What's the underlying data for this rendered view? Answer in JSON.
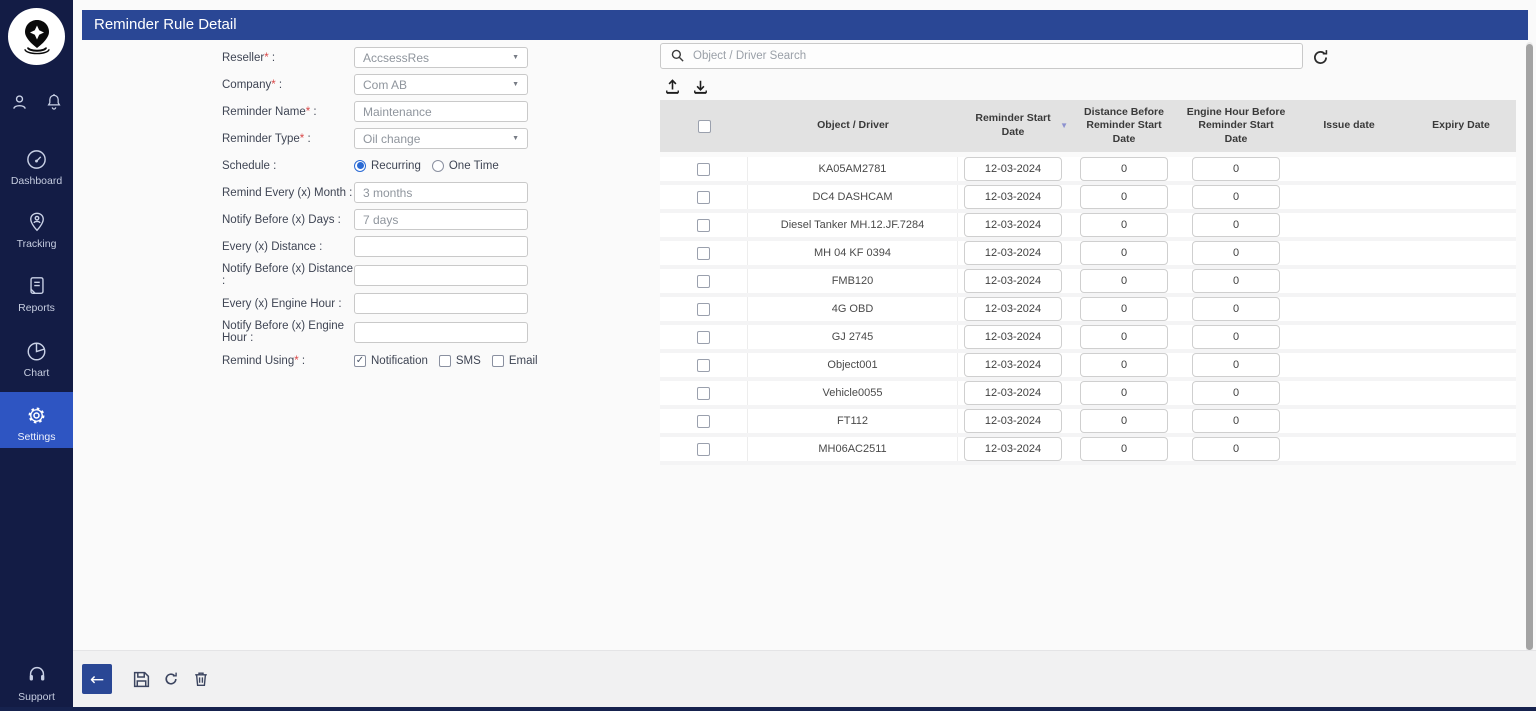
{
  "colors": {
    "sidebar_navy": "#131c45",
    "header_blue": "#2a4795",
    "settings_highlight": "#2e55c2",
    "radio_accent": "#2a6ad4"
  },
  "header": {
    "title": "Reminder Rule Detail"
  },
  "sidebar": {
    "top_icons": [
      {
        "icon": "user-icon"
      },
      {
        "icon": "bell-icon"
      }
    ],
    "items": [
      {
        "label": "Dashboard",
        "icon": "dashboard-gauge-icon",
        "active": false
      },
      {
        "label": "Tracking",
        "icon": "tracking-pin-icon",
        "active": false
      },
      {
        "label": "Reports",
        "icon": "reports-document-icon",
        "active": false
      },
      {
        "label": "Chart",
        "icon": "chart-pie-icon",
        "active": false
      },
      {
        "label": "Settings",
        "icon": "settings-gear-icon",
        "active": true
      }
    ],
    "support": {
      "label": "Support",
      "icon": "support-headset-icon"
    }
  },
  "form": {
    "label_suffix": " :",
    "fields": [
      {
        "label": "Reseller",
        "req": "*",
        "type": "select",
        "value": "AccsessRes"
      },
      {
        "label": "Company",
        "req": "*",
        "type": "select",
        "value": "Com AB"
      },
      {
        "label": "Reminder Name",
        "req": "*",
        "type": "text",
        "value": "Maintenance"
      },
      {
        "label": "Reminder Type",
        "req": "*",
        "type": "select",
        "value": "Oil change"
      },
      {
        "label": "Schedule",
        "req": "",
        "type": "radio",
        "options": [
          {
            "label": "Recurring",
            "selected": true
          },
          {
            "label": "One Time",
            "selected": false
          }
        ]
      },
      {
        "label": "Remind Every (x) Month",
        "req": "",
        "type": "text",
        "value": "3 months"
      },
      {
        "label": "Notify Before (x) Days",
        "req": "",
        "type": "text",
        "value": "7 days"
      },
      {
        "label": "Every (x) Distance",
        "req": "",
        "type": "text",
        "value": ""
      },
      {
        "label": "Notify Before (x) Distance",
        "req": "",
        "type": "text",
        "value": ""
      },
      {
        "label": "Every (x) Engine Hour",
        "req": "",
        "type": "text",
        "value": ""
      },
      {
        "label": "Notify Before (x) Engine Hour",
        "req": "",
        "type": "text",
        "value": ""
      },
      {
        "label": "Remind Using",
        "req": "*",
        "type": "checkbox",
        "options": [
          {
            "label": "Notification",
            "checked": true
          },
          {
            "label": "SMS",
            "checked": false
          },
          {
            "label": "Email",
            "checked": false
          }
        ]
      }
    ]
  },
  "search": {
    "placeholder": "Object / Driver Search"
  },
  "table": {
    "columns": [
      {
        "label": ""
      },
      {
        "label": "Object / Driver"
      },
      {
        "label": "Reminder Start Date",
        "sort": "desc"
      },
      {
        "label": "Distance Before Reminder Start Date"
      },
      {
        "label": "Engine Hour Before Reminder Start Date"
      },
      {
        "label": "Issue date"
      },
      {
        "label": "Expiry Date"
      }
    ],
    "rows": [
      [
        "KA05AM2781",
        "12-03-2024",
        "0",
        "0",
        "",
        ""
      ],
      [
        "DC4 DASHCAM",
        "12-03-2024",
        "0",
        "0",
        "",
        ""
      ],
      [
        "Diesel Tanker MH.12.JF.7284",
        "12-03-2024",
        "0",
        "0",
        "",
        ""
      ],
      [
        "MH 04 KF 0394",
        "12-03-2024",
        "0",
        "0",
        "",
        ""
      ],
      [
        "FMB120",
        "12-03-2024",
        "0",
        "0",
        "",
        ""
      ],
      [
        "4G OBD",
        "12-03-2024",
        "0",
        "0",
        "",
        ""
      ],
      [
        "GJ 2745",
        "12-03-2024",
        "0",
        "0",
        "",
        ""
      ],
      [
        "Object001",
        "12-03-2024",
        "0",
        "0",
        "",
        ""
      ],
      [
        "Vehicle0055",
        "12-03-2024",
        "0",
        "0",
        "",
        ""
      ],
      [
        "FT112",
        "12-03-2024",
        "0",
        "0",
        "",
        ""
      ],
      [
        "MH06AC2511",
        "12-03-2024",
        "0",
        "0",
        "",
        ""
      ]
    ]
  },
  "footer": {
    "buttons": [
      {
        "name": "back-button",
        "icon": "arrow-left-icon"
      },
      {
        "name": "save-button",
        "icon": "save-icon"
      },
      {
        "name": "reset-button",
        "icon": "refresh-icon"
      },
      {
        "name": "delete-button",
        "icon": "trash-icon"
      }
    ]
  }
}
